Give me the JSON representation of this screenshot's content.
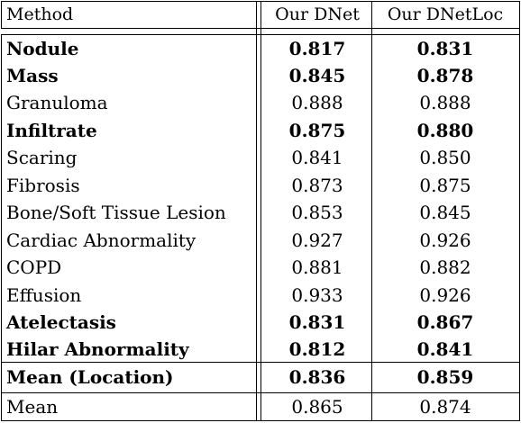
{
  "table": {
    "headers": [
      "Method",
      "Our DNet",
      "Our DNetLoc"
    ],
    "rows": [
      {
        "label": "Nodule",
        "dnet": "0.817",
        "dnetloc": "0.831",
        "bold": true
      },
      {
        "label": "Mass",
        "dnet": "0.845",
        "dnetloc": "0.878",
        "bold": true
      },
      {
        "label": "Granuloma",
        "dnet": "0.888",
        "dnetloc": "0.888",
        "bold": false
      },
      {
        "label": "Infiltrate",
        "dnet": "0.875",
        "dnetloc": "0.880",
        "bold": true
      },
      {
        "label": "Scaring",
        "dnet": "0.841",
        "dnetloc": "0.850",
        "bold": false
      },
      {
        "label": "Fibrosis",
        "dnet": "0.873",
        "dnetloc": "0.875",
        "bold": false
      },
      {
        "label": "Bone/Soft Tissue Lesion",
        "dnet": "0.853",
        "dnetloc": "0.845",
        "bold": false
      },
      {
        "label": "Cardiac Abnormality",
        "dnet": "0.927",
        "dnetloc": "0.926",
        "bold": false
      },
      {
        "label": "COPD",
        "dnet": "0.881",
        "dnetloc": "0.882",
        "bold": false
      },
      {
        "label": "Effusion",
        "dnet": "0.933",
        "dnetloc": "0.926",
        "bold": false
      },
      {
        "label": "Atelectasis",
        "dnet": "0.831",
        "dnetloc": "0.867",
        "bold": true
      },
      {
        "label": "Hilar Abnormality",
        "dnet": "0.812",
        "dnetloc": "0.841",
        "bold": true
      }
    ],
    "mean_location": {
      "label": "Mean (Location)",
      "dnet": "0.836",
      "dnetloc": "0.859"
    },
    "mean": {
      "label": "Mean",
      "dnet": "0.865",
      "dnetloc": "0.874"
    }
  }
}
